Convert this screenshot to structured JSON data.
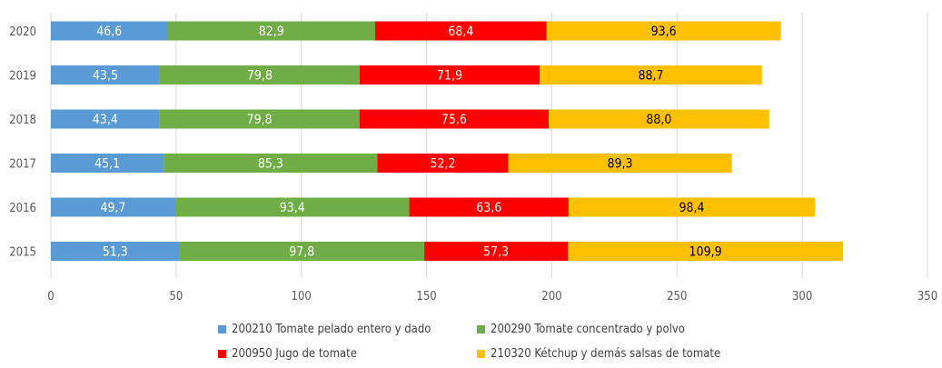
{
  "colors": {
    "series_1": "#5B9BD5",
    "series_2": "#70AD47",
    "series_3": "#FF0000",
    "series_4": "#FFC000",
    "grid": "#D9D9D9",
    "axis_text": "#595959",
    "label_light": "#FFFFFF",
    "label_dark": "#000000"
  },
  "chart_data": {
    "type": "bar",
    "orientation": "horizontal",
    "stacked": true,
    "categories": [
      "2020",
      "2019",
      "2018",
      "2017",
      "2016",
      "2015"
    ],
    "series": [
      {
        "name": "200210 Tomate pelado entero y dado",
        "values": [
          46.6,
          43.5,
          43.4,
          45.1,
          49.7,
          51.3
        ],
        "labels": [
          "46,6",
          "43,5",
          "43,4",
          "45,1",
          "49,7",
          "51,3"
        ]
      },
      {
        "name": "200290 Tomate concentrado y polvo",
        "values": [
          82.9,
          79.8,
          79.8,
          85.3,
          93.4,
          97.8
        ],
        "labels": [
          "82,9",
          "79,8",
          "79,8",
          "85,3",
          "93,4",
          "97,8"
        ]
      },
      {
        "name": "200950 Jugo de tomate",
        "values": [
          68.4,
          71.9,
          75.6,
          52.2,
          63.6,
          57.3
        ],
        "labels": [
          "68,4",
          "71,9",
          "75,6",
          "52,2",
          "63,6",
          "57,3"
        ]
      },
      {
        "name": "210320 Kétchup y demás salsas de tomate",
        "values": [
          93.6,
          88.7,
          88.0,
          89.3,
          98.4,
          109.9
        ],
        "labels": [
          "93,6",
          "88,7",
          "88,0",
          "89,3",
          "98,4",
          "109,9"
        ]
      }
    ],
    "xlim": [
      0,
      350
    ],
    "xticks": [
      0,
      50,
      100,
      150,
      200,
      250,
      300,
      350
    ],
    "xtick_labels": [
      "0",
      "50",
      "100",
      "150",
      "200",
      "250",
      "300",
      "350"
    ],
    "grid": true,
    "legend_position": "bottom"
  }
}
